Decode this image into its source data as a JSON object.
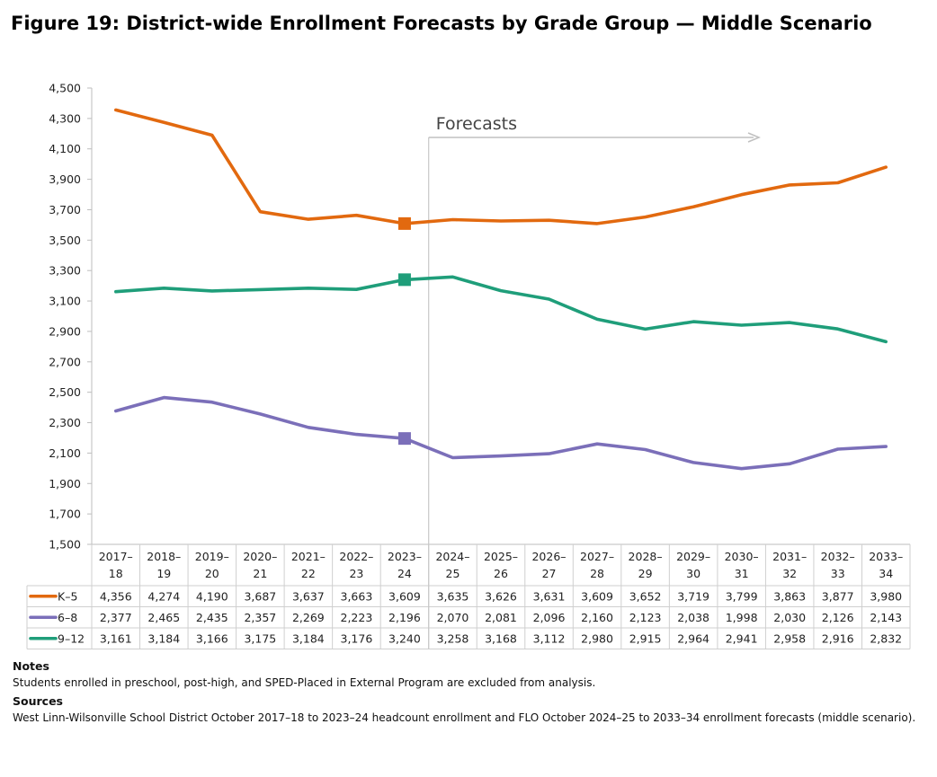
{
  "title": "Figure 19: District-wide Enrollment Forecasts by Grade Group — Middle Scenario",
  "notes": {
    "notes_heading": "Notes",
    "notes_text": "Students enrolled in preschool, post-high, and SPED-Placed in External Program are excluded from analysis.",
    "sources_heading": "Sources",
    "sources_text": "West Linn-Wilsonville School District October 2017–18 to 2023–24 headcount enrollment and FLO October 2024–25 to 2033–34 enrollment forecasts (middle scenario)."
  },
  "chart_data": {
    "type": "line",
    "title": "Figure 19: District-wide Enrollment Forecasts by Grade Group — Middle Scenario",
    "xlabel": "",
    "ylabel": "",
    "ylim": [
      1500,
      4500
    ],
    "y_ticks": [
      1500,
      1700,
      1900,
      2100,
      2300,
      2500,
      2700,
      2900,
      3100,
      3300,
      3500,
      3700,
      3900,
      4100,
      4300,
      4500
    ],
    "grid": false,
    "legend": "data-table-left",
    "categories": [
      [
        "2017–",
        "18"
      ],
      [
        "2018–",
        "19"
      ],
      [
        "2019–",
        "20"
      ],
      [
        "2020–",
        "21"
      ],
      [
        "2021–",
        "22"
      ],
      [
        "2022–",
        "23"
      ],
      [
        "2023–",
        "24"
      ],
      [
        "2024–",
        "25"
      ],
      [
        "2025–",
        "26"
      ],
      [
        "2026–",
        "27"
      ],
      [
        "2027–",
        "28"
      ],
      [
        "2028–",
        "29"
      ],
      [
        "2029–",
        "30"
      ],
      [
        "2030–",
        "31"
      ],
      [
        "2031–",
        "32"
      ],
      [
        "2032–",
        "33"
      ],
      [
        "2033–",
        "34"
      ]
    ],
    "annotation": {
      "label": "Forecasts",
      "starts_after_category_index": 6,
      "arrow_color": "#c0c0c0"
    },
    "marker_category_index": 6,
    "series": [
      {
        "name": "K–5",
        "color": "#e2690f",
        "values": [
          4356,
          4274,
          4190,
          3687,
          3637,
          3663,
          3609,
          3635,
          3626,
          3631,
          3609,
          3652,
          3719,
          3799,
          3863,
          3877,
          3980
        ],
        "labels": [
          "4,356",
          "4,274",
          "4,190",
          "3,687",
          "3,637",
          "3,663",
          "3,609",
          "3,635",
          "3,626",
          "3,631",
          "3,609",
          "3,652",
          "3,719",
          "3,799",
          "3,863",
          "3,877",
          "3,980"
        ]
      },
      {
        "name": "6–8",
        "color": "#7b6fb9",
        "values": [
          2377,
          2465,
          2435,
          2357,
          2269,
          2223,
          2196,
          2070,
          2081,
          2096,
          2160,
          2123,
          2038,
          1998,
          2030,
          2126,
          2143
        ],
        "labels": [
          "2,377",
          "2,465",
          "2,435",
          "2,357",
          "2,269",
          "2,223",
          "2,196",
          "2,070",
          "2,081",
          "2,096",
          "2,160",
          "2,123",
          "2,038",
          "1,998",
          "2,030",
          "2,126",
          "2,143"
        ]
      },
      {
        "name": "9–12",
        "color": "#1f9e7a",
        "values": [
          3161,
          3184,
          3166,
          3175,
          3184,
          3176,
          3240,
          3258,
          3168,
          3112,
          2980,
          2915,
          2964,
          2941,
          2958,
          2916,
          2832
        ],
        "labels": [
          "3,161",
          "3,184",
          "3,166",
          "3,175",
          "3,184",
          "3,176",
          "3,240",
          "3,258",
          "3,168",
          "3,112",
          "2,980",
          "2,915",
          "2,964",
          "2,941",
          "2,958",
          "2,916",
          "2,832"
        ]
      }
    ]
  }
}
